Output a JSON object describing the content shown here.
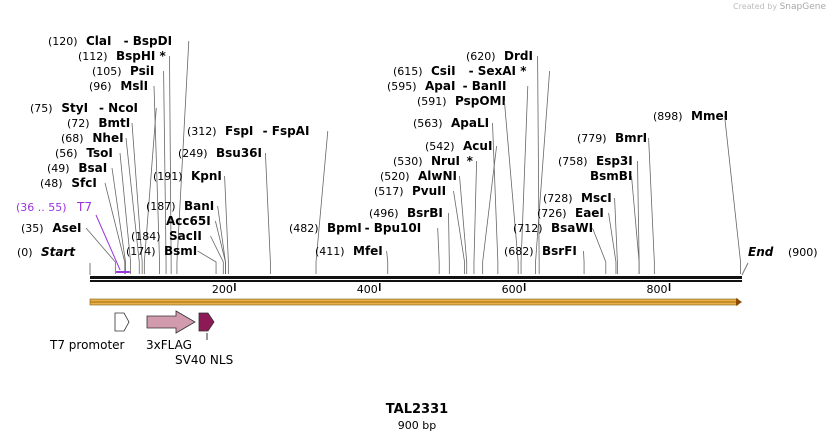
{
  "credit": {
    "prefix": "Created by",
    "brand": "SnapGene"
  },
  "map": {
    "name": "TAL2331",
    "length_label": "900 bp",
    "length": 900,
    "start_label": "Start",
    "end_label": "End",
    "start_pos": "(0)",
    "end_pos": "(900)",
    "ticks": [
      "200",
      "400",
      "600",
      "800"
    ],
    "tick_values": [
      200,
      400,
      600,
      800
    ]
  },
  "sites": [
    {
      "pos": "(120)",
      "name": "ClaI",
      "alt": "BspDI",
      "star": false,
      "x": 120
    },
    {
      "pos": "(112)",
      "name": "BspHI",
      "alt": "",
      "star": true,
      "x": 112
    },
    {
      "pos": "(105)",
      "name": "PsiI",
      "alt": "",
      "star": false,
      "x": 105
    },
    {
      "pos": "(96)",
      "name": "MslI",
      "alt": "",
      "star": false,
      "x": 96
    },
    {
      "pos": "(75)",
      "name": "StyI",
      "alt": "NcoI",
      "star": false,
      "x": 75
    },
    {
      "pos": "(72)",
      "name": "BmtI",
      "alt": "",
      "star": false,
      "x": 72
    },
    {
      "pos": "(68)",
      "name": "NheI",
      "alt": "",
      "star": false,
      "x": 68
    },
    {
      "pos": "(56)",
      "name": "TsoI",
      "alt": "",
      "star": false,
      "x": 56
    },
    {
      "pos": "(49)",
      "name": "BsaI",
      "alt": "",
      "star": false,
      "x": 49
    },
    {
      "pos": "(48)",
      "name": "SfcI",
      "alt": "",
      "star": false,
      "x": 48
    },
    {
      "pos": "(35)",
      "name": "AseI",
      "alt": "",
      "star": false,
      "x": 35
    },
    {
      "pos": "(312)",
      "name": "FspI",
      "alt": "FspAI",
      "star": false,
      "x": 312
    },
    {
      "pos": "(249)",
      "name": "Bsu36I",
      "alt": "",
      "star": false,
      "x": 249
    },
    {
      "pos": "(191)",
      "name": "KpnI",
      "alt": "",
      "star": false,
      "x": 191
    },
    {
      "pos": "(187)",
      "name": "BanI",
      "alt": "",
      "star": false,
      "x": 187
    },
    {
      "pos": "",
      "name": "Acc65I",
      "alt": "",
      "star": false,
      "x": 187
    },
    {
      "pos": "(184)",
      "name": "SacII",
      "alt": "",
      "star": false,
      "x": 184
    },
    {
      "pos": "(174)",
      "name": "BsmI",
      "alt": "",
      "star": false,
      "x": 174
    },
    {
      "pos": "(482)",
      "name": "BpmI",
      "alt": "Bpu10I",
      "star": false,
      "x": 482
    },
    {
      "pos": "(411)",
      "name": "MfeI",
      "alt": "",
      "star": false,
      "x": 411
    },
    {
      "pos": "(620)",
      "name": "DrdI",
      "alt": "",
      "star": false,
      "x": 620
    },
    {
      "pos": "(615)",
      "name": "CsiI",
      "alt": "SexAI",
      "star": true,
      "x": 615
    },
    {
      "pos": "(595)",
      "name": "ApaI",
      "alt": "BanII",
      "star": false,
      "x": 595
    },
    {
      "pos": "(591)",
      "name": "PspOMI",
      "alt": "",
      "star": false,
      "x": 591
    },
    {
      "pos": "(563)",
      "name": "ApaLI",
      "alt": "",
      "star": false,
      "x": 563
    },
    {
      "pos": "(542)",
      "name": "AcuI",
      "alt": "",
      "star": false,
      "x": 542
    },
    {
      "pos": "(530)",
      "name": "NruI",
      "alt": "",
      "star": true,
      "x": 530
    },
    {
      "pos": "(520)",
      "name": "AlwNI",
      "alt": "",
      "star": false,
      "x": 520
    },
    {
      "pos": "(517)",
      "name": "PvuII",
      "alt": "",
      "star": false,
      "x": 517
    },
    {
      "pos": "(496)",
      "name": "BsrBI",
      "alt": "",
      "star": false,
      "x": 496
    },
    {
      "pos": "(898)",
      "name": "MmeI",
      "alt": "",
      "star": false,
      "x": 898
    },
    {
      "pos": "(779)",
      "name": "BmrI",
      "alt": "",
      "star": false,
      "x": 779
    },
    {
      "pos": "(758)",
      "name": "Esp3I",
      "alt": "",
      "star": false,
      "x": 758
    },
    {
      "pos": "",
      "name": "BsmBI",
      "alt": "",
      "star": false,
      "x": 758
    },
    {
      "pos": "(728)",
      "name": "MscI",
      "alt": "",
      "star": false,
      "x": 728
    },
    {
      "pos": "(726)",
      "name": "EaeI",
      "alt": "",
      "star": false,
      "x": 726
    },
    {
      "pos": "(712)",
      "name": "BsaWI",
      "alt": "",
      "star": false,
      "x": 712
    },
    {
      "pos": "(682)",
      "name": "BsrFI",
      "alt": "",
      "star": false,
      "x": 682
    }
  ],
  "primer": {
    "pos": "(36 .. 55)",
    "name": "T7",
    "start": 36,
    "end": 55,
    "color": "#9a33e0"
  },
  "features": [
    {
      "name": "T7 promoter",
      "start": 36,
      "end": 55,
      "color": "#ffffff"
    },
    {
      "name": "3xFLAG",
      "start": 77,
      "end": 143,
      "color": "#d29aad"
    },
    {
      "name": "SV40 NLS",
      "start": 150,
      "end": 171,
      "color": "#8e1a55"
    }
  ],
  "orf_color": "#e8b04a"
}
